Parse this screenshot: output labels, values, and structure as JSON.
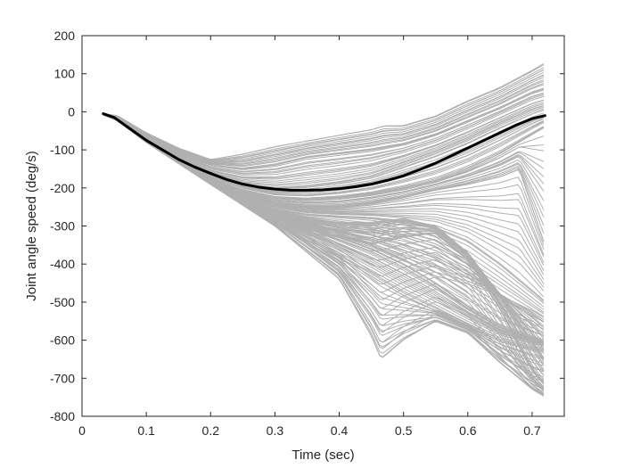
{
  "chart_data": {
    "type": "line",
    "title": "",
    "xlabel": "Time (sec)",
    "ylabel": "Joint angle speed (deg/s)",
    "xlim": [
      0,
      0.75
    ],
    "ylim": [
      -800,
      200
    ],
    "xticks": [
      0,
      0.1,
      0.2,
      0.3,
      0.4,
      0.5,
      0.6,
      0.7
    ],
    "xtick_labels": [
      "0",
      "0.1",
      "0.2",
      "0.3",
      "0.4",
      "0.5",
      "0.6",
      "0.7"
    ],
    "yticks": [
      200,
      100,
      0,
      -100,
      -200,
      -300,
      -400,
      -500,
      -600,
      -700,
      -800
    ],
    "ytick_labels": [
      "200",
      "100",
      "0",
      "-100",
      "-200",
      "-300",
      "-400",
      "-500",
      "-600",
      "-700",
      "-800"
    ],
    "grid": false,
    "box": true,
    "colors": {
      "ensemble": "#b0b0b0",
      "mean": "#000000",
      "axis": "#262626",
      "background": "#ffffff"
    },
    "series": [
      {
        "role": "ensemble",
        "values": [
          {
            "x": [
              0.033,
              0.055,
              0.1,
              0.15,
              0.2,
              0.25,
              0.3,
              0.35,
              0.4,
              0.45,
              0.47,
              0.5,
              0.55,
              0.6,
              0.65,
              0.7,
              0.72
            ],
            "y": [
              -5,
              -10,
              -55,
              -95,
              -125,
              -110,
              -90,
              -75,
              -60,
              -45,
              -35,
              -35,
              -10,
              30,
              65,
              110,
              130
            ]
          },
          {
            "x": [
              0.033,
              0.055,
              0.1,
              0.15,
              0.2,
              0.25,
              0.3,
              0.35,
              0.4,
              0.45,
              0.5,
              0.55,
              0.6,
              0.65,
              0.7,
              0.72
            ],
            "y": [
              -5,
              -15,
              -60,
              -105,
              -140,
              -150,
              -140,
              -120,
              -110,
              -100,
              -85,
              -60,
              -25,
              10,
              50,
              60
            ]
          },
          {
            "x": [
              0.033,
              0.055,
              0.1,
              0.15,
              0.2,
              0.25,
              0.3,
              0.35,
              0.4,
              0.45,
              0.5,
              0.55,
              0.6,
              0.65,
              0.7,
              0.72
            ],
            "y": [
              -8,
              -20,
              -70,
              -120,
              -165,
              -190,
              -200,
              -195,
              -185,
              -170,
              -140,
              -110,
              -75,
              -35,
              0,
              10
            ]
          },
          {
            "x": [
              0.033,
              0.055,
              0.1,
              0.15,
              0.2,
              0.25,
              0.3,
              0.35,
              0.4,
              0.45,
              0.5,
              0.55,
              0.6,
              0.65,
              0.7,
              0.72
            ],
            "y": [
              -8,
              -22,
              -75,
              -125,
              -175,
              -205,
              -225,
              -230,
              -225,
              -215,
              -200,
              -180,
              -150,
              -110,
              -60,
              -40
            ]
          },
          {
            "x": [
              0.033,
              0.055,
              0.1,
              0.15,
              0.2,
              0.25,
              0.3,
              0.35,
              0.4,
              0.45,
              0.5,
              0.55,
              0.6,
              0.65,
              0.68,
              0.7,
              0.72
            ],
            "y": [
              -8,
              -22,
              -78,
              -130,
              -180,
              -215,
              -240,
              -250,
              -250,
              -240,
              -225,
              -205,
              -190,
              -170,
              -150,
              -250,
              -350
            ]
          },
          {
            "x": [
              0.033,
              0.055,
              0.1,
              0.15,
              0.2,
              0.25,
              0.3,
              0.35,
              0.4,
              0.45,
              0.5,
              0.55,
              0.6,
              0.65,
              0.7,
              0.72
            ],
            "y": [
              -8,
              -23,
              -80,
              -132,
              -185,
              -225,
              -255,
              -270,
              -275,
              -280,
              -290,
              -305,
              -340,
              -400,
              -470,
              -500
            ]
          },
          {
            "x": [
              0.033,
              0.055,
              0.1,
              0.15,
              0.2,
              0.25,
              0.3,
              0.35,
              0.4,
              0.45,
              0.5,
              0.55,
              0.6,
              0.65,
              0.7,
              0.72
            ],
            "y": [
              -8,
              -23,
              -80,
              -135,
              -190,
              -235,
              -270,
              -300,
              -330,
              -360,
              -400,
              -450,
              -510,
              -560,
              -590,
              -600
            ]
          },
          {
            "x": [
              0.033,
              0.055,
              0.1,
              0.15,
              0.2,
              0.25,
              0.3,
              0.35,
              0.4,
              0.45,
              0.5,
              0.55,
              0.6,
              0.65,
              0.7,
              0.72
            ],
            "y": [
              -8,
              -23,
              -80,
              -135,
              -190,
              -240,
              -285,
              -330,
              -380,
              -430,
              -480,
              -520,
              -560,
              -600,
              -620,
              -625
            ]
          },
          {
            "x": [
              0.033,
              0.055,
              0.1,
              0.15,
              0.2,
              0.25,
              0.3,
              0.35,
              0.4,
              0.45,
              0.465,
              0.5,
              0.55,
              0.6,
              0.65,
              0.7,
              0.72
            ],
            "y": [
              -8,
              -23,
              -80,
              -135,
              -190,
              -245,
              -300,
              -370,
              -440,
              -590,
              -650,
              -600,
              -550,
              -580,
              -660,
              -730,
              -750
            ]
          },
          {
            "x": [
              0.033,
              0.055,
              0.1,
              0.15,
              0.2,
              0.25,
              0.3,
              0.35,
              0.4,
              0.45,
              0.5,
              0.55,
              0.6,
              0.65,
              0.7,
              0.72
            ],
            "y": [
              -8,
              -23,
              -80,
              -135,
              -190,
              -240,
              -280,
              -310,
              -330,
              -350,
              -330,
              -320,
              -390,
              -520,
              -680,
              -720
            ]
          },
          {
            "x": [
              0.033,
              0.055,
              0.1,
              0.15,
              0.2,
              0.25,
              0.3,
              0.35,
              0.4,
              0.45,
              0.5,
              0.55,
              0.6,
              0.65,
              0.7,
              0.72
            ],
            "y": [
              -8,
              -23,
              -80,
              -135,
              -188,
              -232,
              -262,
              -282,
              -290,
              -290,
              -280,
              -300,
              -370,
              -480,
              -600,
              -650
            ]
          },
          {
            "x": [
              0.033,
              0.055,
              0.1,
              0.15,
              0.2,
              0.25,
              0.3,
              0.35,
              0.4,
              0.45,
              0.5,
              0.55,
              0.6,
              0.65,
              0.7,
              0.72
            ],
            "y": [
              -8,
              -23,
              -80,
              -135,
              -190,
              -238,
              -275,
              -305,
              -330,
              -360,
              -400,
              -430,
              -450,
              -480,
              -520,
              -540
            ]
          }
        ]
      },
      {
        "role": "mean",
        "x": [
          0.033,
          0.05,
          0.075,
          0.1,
          0.125,
          0.15,
          0.175,
          0.2,
          0.225,
          0.25,
          0.275,
          0.3,
          0.325,
          0.35,
          0.375,
          0.4,
          0.425,
          0.45,
          0.475,
          0.5,
          0.525,
          0.55,
          0.575,
          0.6,
          0.625,
          0.65,
          0.675,
          0.7,
          0.72
        ],
        "y": [
          -5,
          -15,
          -45,
          -75,
          -100,
          -125,
          -145,
          -162,
          -178,
          -190,
          -198,
          -203,
          -206,
          -206,
          -205,
          -202,
          -197,
          -190,
          -180,
          -168,
          -152,
          -135,
          -115,
          -95,
          -75,
          -55,
          -35,
          -18,
          -10
        ]
      }
    ]
  }
}
